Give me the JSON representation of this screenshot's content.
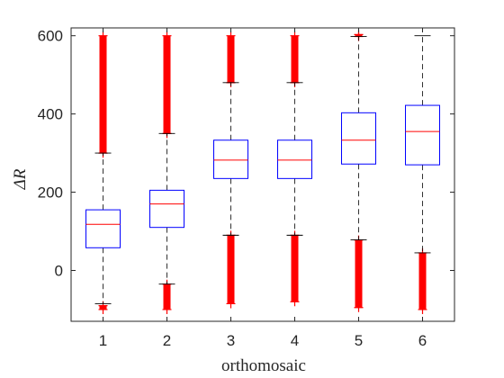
{
  "chart_data": {
    "type": "box",
    "title": "",
    "xlabel": "orthomosaic",
    "ylabel": "ΔR",
    "ylim": [
      -130,
      620
    ],
    "yticks": [
      0,
      200,
      400,
      600
    ],
    "grid": false,
    "categories": [
      "1",
      "2",
      "3",
      "4",
      "5",
      "6"
    ],
    "boxes": [
      {
        "category": "1",
        "q1": 58,
        "median": 118,
        "q3": 155,
        "whisker_low": -85,
        "whisker_high": 300,
        "outliers_low": [
          -90,
          -100
        ],
        "outliers_high": [
          300,
          600
        ]
      },
      {
        "category": "2",
        "q1": 110,
        "median": 170,
        "q3": 205,
        "whisker_low": -35,
        "whisker_high": 350,
        "outliers_low": [
          -35,
          -100
        ],
        "outliers_high": [
          350,
          600
        ]
      },
      {
        "category": "3",
        "q1": 235,
        "median": 282,
        "q3": 333,
        "whisker_low": 90,
        "whisker_high": 480,
        "outliers_low": [
          90,
          -85
        ],
        "outliers_high": [
          480,
          600
        ]
      },
      {
        "category": "4",
        "q1": 235,
        "median": 282,
        "q3": 333,
        "whisker_low": 90,
        "whisker_high": 480,
        "outliers_low": [
          90,
          -80
        ],
        "outliers_high": [
          480,
          600
        ]
      },
      {
        "category": "5",
        "q1": 272,
        "median": 333,
        "q3": 403,
        "whisker_low": 78,
        "whisker_high": 598,
        "outliers_low": [
          78,
          -95
        ],
        "outliers_high": [
          598,
          603
        ]
      },
      {
        "category": "6",
        "q1": 270,
        "median": 355,
        "q3": 422,
        "whisker_low": 45,
        "whisker_high": 600,
        "outliers_low": [
          45,
          -100
        ],
        "outliers_high": []
      }
    ],
    "colors": {
      "box": "#0000ff",
      "median": "#ff0000",
      "outlier": "#ff0000",
      "whisker": "#000000",
      "axes": "#262626"
    }
  }
}
